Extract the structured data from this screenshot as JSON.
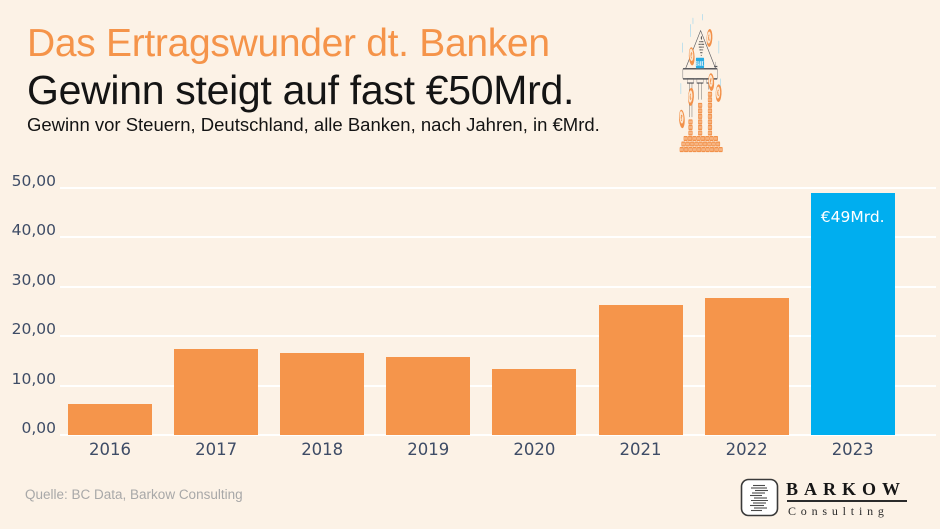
{
  "header": {
    "title": "Das Ertragswunder dt. Banken",
    "subtitle": "Gewinn steigt auf fast €50Mrd.",
    "description": "Gewinn vor Steuern, Deutschland, alle Banken, nach Jahren, in €Mrd."
  },
  "colors": {
    "background": "#FCF2E6",
    "title_orange": "#F5944A",
    "bar_orange": "#F5954B",
    "highlight_blue": "#00AEEF",
    "axis_text": "#3E4C66",
    "gridline": "#FFFFFF",
    "source_gray": "#A8A8A8",
    "coin_orange": "#F2914A",
    "rain_blue": "#8FD2F0",
    "bank_sign_blue": "#29ABE2"
  },
  "chart_data": {
    "type": "bar",
    "title": "Gewinn vor Steuern, Deutschland, alle Banken, nach Jahren, in €Mrd.",
    "categories": [
      "2016",
      "2017",
      "2018",
      "2019",
      "2020",
      "2021",
      "2022",
      "2023"
    ],
    "values": [
      6.3,
      17.4,
      16.5,
      15.8,
      13.3,
      26.3,
      27.8,
      49.0
    ],
    "bar_color": "#F5954B",
    "highlight": {
      "index": 7,
      "color": "#00AEEF",
      "label": "€49Mrd.",
      "label_color": "#FFFFFF"
    },
    "xlabel": "",
    "ylabel": "",
    "ylim": [
      0,
      50
    ],
    "yticks": [
      0,
      10,
      20,
      30,
      40,
      50
    ],
    "ytick_labels": [
      "0,00",
      "10,00",
      "20,00",
      "30,00",
      "40,00",
      "50,00"
    ],
    "grid": "horizontal",
    "legend": "none"
  },
  "illustration": {
    "bank_sign_label": "BANK"
  },
  "footer": {
    "source": "Quelle: BC Data, Barkow Consulting"
  },
  "logo": {
    "name": "BARKOW",
    "tagline": "Consulting"
  }
}
